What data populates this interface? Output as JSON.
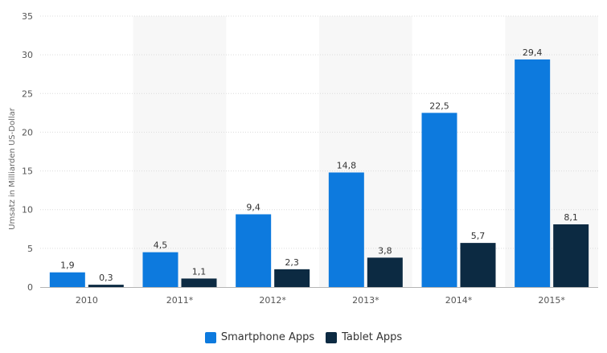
{
  "chart_data": {
    "type": "bar",
    "categories": [
      "2010",
      "2011*",
      "2012*",
      "2013*",
      "2014*",
      "2015*"
    ],
    "series": [
      {
        "name": "Smartphone Apps",
        "color": "#0d7ade",
        "values": [
          1.9,
          4.5,
          9.4,
          14.8,
          22.5,
          29.4
        ],
        "labels": [
          "1,9",
          "4,5",
          "9,4",
          "14,8",
          "22,5",
          "29,4"
        ]
      },
      {
        "name": "Tablet Apps",
        "color": "#0c2a42",
        "values": [
          0.3,
          1.1,
          2.3,
          3.8,
          5.7,
          8.1
        ],
        "labels": [
          "0,3",
          "1,1",
          "2,3",
          "3,8",
          "5,7",
          "8,1"
        ]
      }
    ],
    "ylabel": "Umsatz in Milliarden US-Dollar",
    "xlabel": "",
    "ylim": [
      0,
      35
    ],
    "yticks": [
      "0",
      "5",
      "10",
      "15",
      "20",
      "25",
      "30",
      "35"
    ],
    "grid": true,
    "legend_position": "bottom-center"
  }
}
